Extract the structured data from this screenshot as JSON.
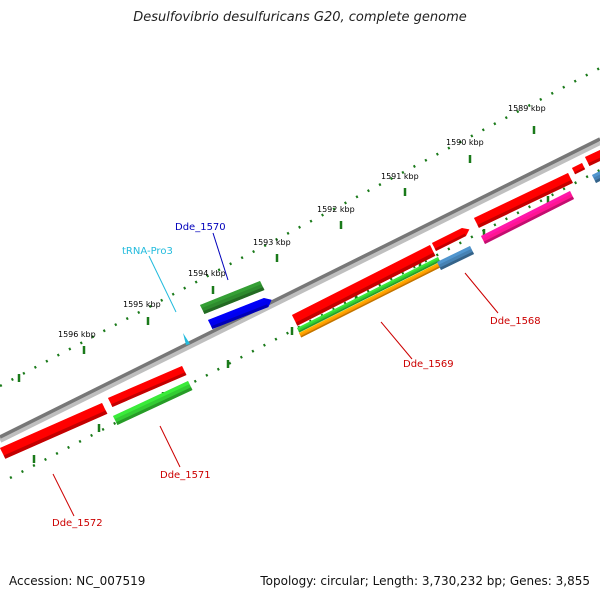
{
  "title": "Desulfovibrio desulfuricans G20, complete genome",
  "footer": {
    "accession": "Accession: NC_007519",
    "summary": "Topology: circular; Length: 3,730,232 bp; Genes: 3,855"
  },
  "ticks": [
    "1589 kbp",
    "1590 kbp",
    "1591 kbp",
    "1592 kbp",
    "1593 kbp",
    "1594 kbp",
    "1595 kbp",
    "1596 kbp"
  ],
  "features": {
    "dde_1568": "Dde_1568",
    "dde_1569": "Dde_1569",
    "dde_1570": "Dde_1570",
    "dde_1571": "Dde_1571",
    "dde_1572": "Dde_1572",
    "trna_pro3": "tRNA-Pro3"
  },
  "colors": {
    "cds": "#ff0000",
    "gene": "#2e8b2e",
    "rrna_blue": "#0000ee",
    "label_red": "#cc0000",
    "label_blue": "#0000bb",
    "label_cyan": "#22bbdd",
    "backbone": "#808080",
    "steelblue": "#4682b4",
    "orange": "#ff9900",
    "magenta": "#ff1493",
    "lightgreen": "#33cc33"
  }
}
